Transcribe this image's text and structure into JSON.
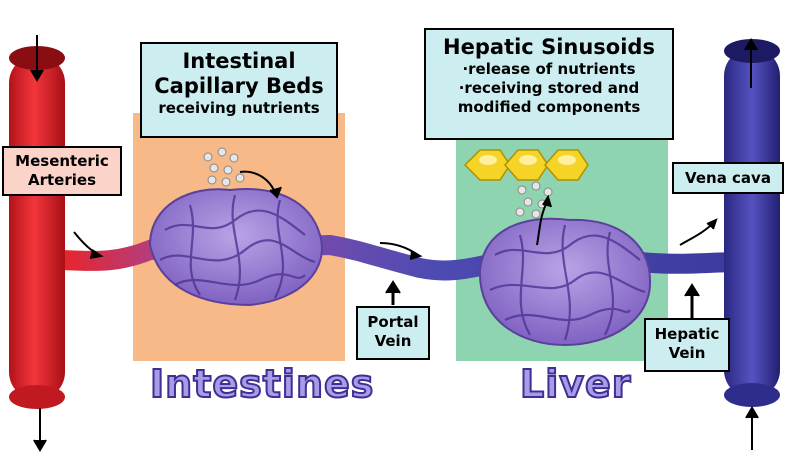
{
  "boxes": {
    "intestinal": {
      "title_line1": "Intestinal",
      "title_line2": "Capillary Beds",
      "subtitle": "receiving nutrients"
    },
    "hepatic_sinusoids": {
      "title": "Hepatic Sinusoids",
      "bullet1": "·release of nutrients",
      "bullet2": "·receiving stored and",
      "bullet3": "modified components"
    },
    "mesenteric_line1": "Mesenteric",
    "mesenteric_line2": "Arteries",
    "vena_cava": "Vena cava",
    "portal_line1": "Portal",
    "portal_line2": "Vein",
    "hepatic_vein_line1": "Hepatic",
    "hepatic_vein_line2": "Vein"
  },
  "regions": {
    "intestines": "Intestines",
    "liver": "Liver"
  },
  "colors": {
    "artery": "#e8242a",
    "vein": "#3c3a9c",
    "intestine_bg": "#f6b987",
    "liver_bg": "#8fd4b0",
    "label_bg": "#cdeef0",
    "artery_label_bg": "#fbd3c9",
    "capillary": "#9a7fd0",
    "hepatocyte": "#f5d327"
  }
}
